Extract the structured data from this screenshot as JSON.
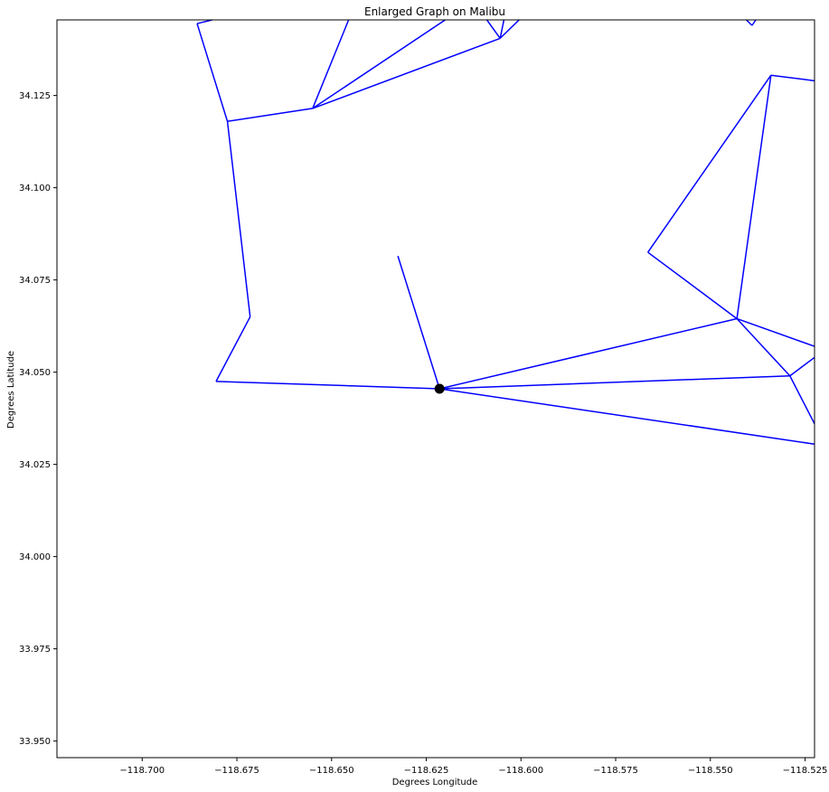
{
  "chart_data": {
    "type": "line",
    "title": "Enlarged Graph on Malibu",
    "xlabel": "Degrees Longitude",
    "ylabel": "Degrees Latitude",
    "xlim": [
      -118.7225,
      -118.5225
    ],
    "ylim": [
      33.9455,
      34.1455
    ],
    "xticks": [
      {
        "value": -118.7,
        "label": "−118.700"
      },
      {
        "value": -118.675,
        "label": "−118.675"
      },
      {
        "value": -118.65,
        "label": "−118.650"
      },
      {
        "value": -118.625,
        "label": "−118.625"
      },
      {
        "value": -118.6,
        "label": "−118.600"
      },
      {
        "value": -118.575,
        "label": "−118.575"
      },
      {
        "value": -118.55,
        "label": "−118.550"
      },
      {
        "value": -118.525,
        "label": "−118.525"
      }
    ],
    "yticks": [
      {
        "value": 33.95,
        "label": "33.950"
      },
      {
        "value": 33.975,
        "label": "33.975"
      },
      {
        "value": 34.0,
        "label": "34.000"
      },
      {
        "value": 34.025,
        "label": "34.025"
      },
      {
        "value": 34.05,
        "label": "34.050"
      },
      {
        "value": 34.075,
        "label": "34.075"
      },
      {
        "value": 34.1,
        "label": "34.100"
      },
      {
        "value": 34.125,
        "label": "34.125"
      }
    ],
    "grid": false,
    "line_color": "#0000ff",
    "marker_color": "#000000",
    "center_point": [
      -118.6215,
      34.0455
    ],
    "edges": [
      [
        [
          -118.6215,
          34.0455
        ],
        [
          -118.6325,
          34.0815
        ]
      ],
      [
        [
          -118.6215,
          34.0455
        ],
        [
          -118.6805,
          34.0475
        ]
      ],
      [
        [
          -118.6805,
          34.0475
        ],
        [
          -118.6715,
          34.065
        ]
      ],
      [
        [
          -118.6715,
          34.065
        ],
        [
          -118.6775,
          34.118
        ]
      ],
      [
        [
          -118.6775,
          34.118
        ],
        [
          -118.6855,
          34.1445
        ]
      ],
      [
        [
          -118.6855,
          34.1445
        ],
        [
          -118.6815,
          34.1455
        ]
      ],
      [
        [
          -118.6775,
          34.118
        ],
        [
          -118.655,
          34.1215
        ]
      ],
      [
        [
          -118.655,
          34.1215
        ],
        [
          -118.6455,
          34.1455
        ]
      ],
      [
        [
          -118.655,
          34.1215
        ],
        [
          -118.62,
          34.1455
        ]
      ],
      [
        [
          -118.655,
          34.1215
        ],
        [
          -118.6055,
          34.1405
        ]
      ],
      [
        [
          -118.6055,
          34.1405
        ],
        [
          -118.609,
          34.1455
        ]
      ],
      [
        [
          -118.6055,
          34.1405
        ],
        [
          -118.6045,
          34.1455
        ]
      ],
      [
        [
          -118.6055,
          34.1405
        ],
        [
          -118.6005,
          34.1455
        ]
      ],
      [
        [
          -118.5405,
          34.1455
        ],
        [
          -118.539,
          34.144
        ]
      ],
      [
        [
          -118.539,
          34.144
        ],
        [
          -118.538,
          34.1455
        ]
      ],
      [
        [
          -118.6215,
          34.0455
        ],
        [
          -118.543,
          34.0645
        ]
      ],
      [
        [
          -118.543,
          34.0645
        ],
        [
          -118.5665,
          34.0825
        ]
      ],
      [
        [
          -118.5665,
          34.0825
        ],
        [
          -118.534,
          34.1305
        ]
      ],
      [
        [
          -118.534,
          34.1305
        ],
        [
          -118.543,
          34.0645
        ]
      ],
      [
        [
          -118.534,
          34.1305
        ],
        [
          -118.5225,
          34.129
        ]
      ],
      [
        [
          -118.543,
          34.0645
        ],
        [
          -118.5225,
          34.057
        ]
      ],
      [
        [
          -118.543,
          34.0645
        ],
        [
          -118.529,
          34.049
        ]
      ],
      [
        [
          -118.6215,
          34.0455
        ],
        [
          -118.529,
          34.049
        ]
      ],
      [
        [
          -118.529,
          34.049
        ],
        [
          -118.5225,
          34.054
        ]
      ],
      [
        [
          -118.529,
          34.049
        ],
        [
          -118.5225,
          34.036
        ]
      ],
      [
        [
          -118.6215,
          34.0455
        ],
        [
          -118.5225,
          34.0305
        ]
      ]
    ]
  }
}
